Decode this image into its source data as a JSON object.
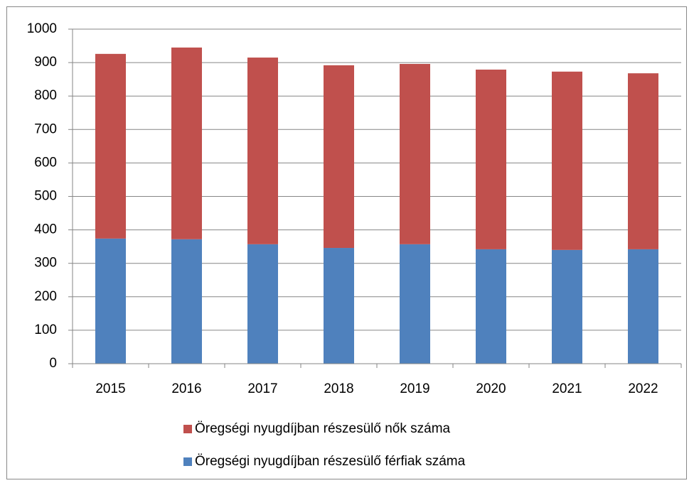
{
  "chart_data": {
    "type": "stacked_bar",
    "categories": [
      "2015",
      "2016",
      "2017",
      "2018",
      "2019",
      "2020",
      "2021",
      "2022"
    ],
    "series": [
      {
        "name": "Öregségi nyugdíjban részesülő férfiak száma",
        "color": "#4f81bd",
        "values": [
          374,
          372,
          357,
          346,
          357,
          342,
          340,
          342
        ]
      },
      {
        "name": "Öregségi nyugdíjban részesülő nők száma",
        "color": "#c0504d",
        "values": [
          552,
          573,
          558,
          546,
          539,
          537,
          533,
          526
        ]
      }
    ],
    "ylim": [
      0,
      1000
    ],
    "yticks": [
      0,
      100,
      200,
      300,
      400,
      500,
      600,
      700,
      800,
      900,
      1000
    ],
    "grid": true
  }
}
